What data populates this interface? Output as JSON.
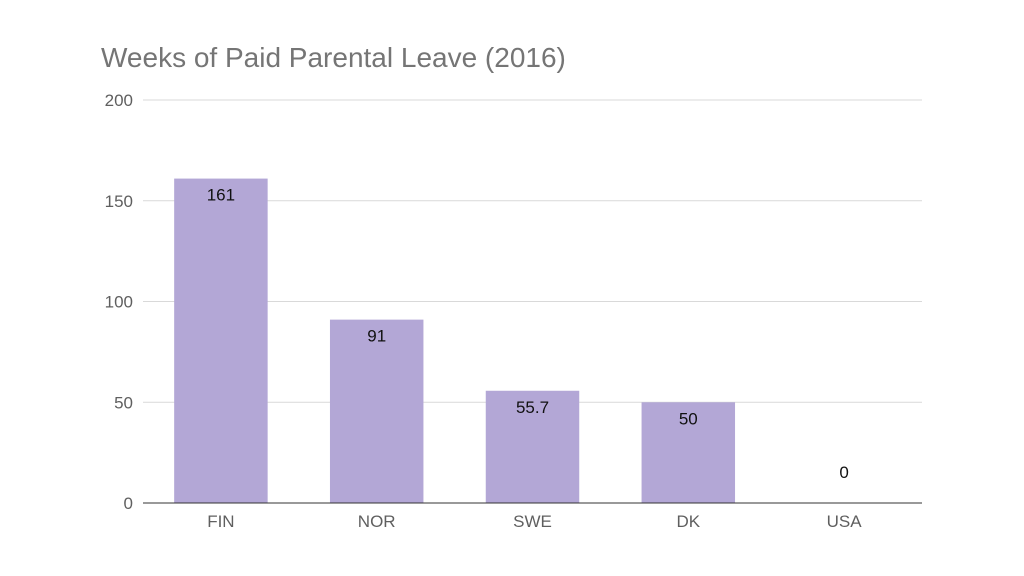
{
  "chart_data": {
    "type": "bar",
    "title": "Weeks of Paid Parental Leave (2016)",
    "categories": [
      "FIN",
      "NOR",
      "SWE",
      "DK",
      "USA"
    ],
    "values": [
      161,
      91,
      55.7,
      50,
      0
    ],
    "data_labels": [
      "161",
      "91",
      "55.7",
      "50",
      "0"
    ],
    "yticks": [
      0,
      50,
      100,
      150,
      200
    ],
    "ylim": [
      0,
      200
    ],
    "xlabel": "",
    "ylabel": "",
    "grid": true,
    "legend": "none",
    "bar_color": "#b3a7d6"
  }
}
